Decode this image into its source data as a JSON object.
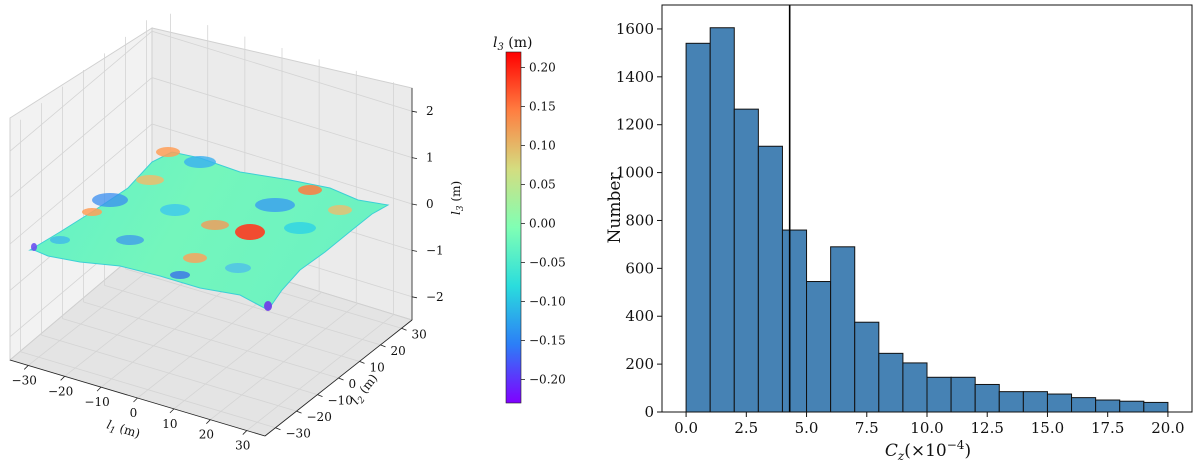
{
  "chart_data": [
    {
      "type": "surface3d",
      "xlabel_main": "l",
      "xlabel_sub": "1",
      "xlabel_unit": " (m)",
      "ylabel_main": "l",
      "ylabel_sub": "2",
      "ylabel_unit": " (m)",
      "zlabel_main": "l",
      "zlabel_sub": "3",
      "zlabel_unit": " (m)",
      "x_ticks": [
        "−30",
        "−20",
        "−10",
        "0",
        "10",
        "20",
        "30"
      ],
      "y_ticks": [
        "−30",
        "−20",
        "−10",
        "0",
        "10",
        "20",
        "30"
      ],
      "z_ticks": [
        "−2",
        "−1",
        "0",
        "1",
        "2"
      ],
      "xlim": [
        -35,
        35
      ],
      "ylim": [
        -35,
        35
      ],
      "zlim": [
        -2.5,
        2.5
      ],
      "grid": true,
      "colormap": "rainbow"
    },
    {
      "type": "colorbar",
      "title_main": "l",
      "title_sub": "3",
      "title_unit": " (m)",
      "range": [
        -0.23,
        0.22
      ],
      "ticks": [
        "0.20",
        "0.15",
        "0.10",
        "0.05",
        "0.00",
        "−0.05",
        "−0.10",
        "−0.15",
        "−0.20"
      ],
      "colors": [
        "#8000ff",
        "#2c7ef7",
        "#2adddd",
        "#80ffb4",
        "#d4dd80",
        "#ff7e41",
        "#ff0000"
      ]
    },
    {
      "type": "bar",
      "bin_edges": [
        0,
        1,
        2,
        3,
        4,
        5,
        6,
        7,
        8,
        9,
        10,
        11,
        12,
        13,
        14,
        15,
        16,
        17,
        18,
        19,
        20
      ],
      "values": [
        1540,
        1605,
        1265,
        1110,
        760,
        545,
        690,
        375,
        245,
        205,
        145,
        145,
        115,
        85,
        85,
        75,
        60,
        50,
        45,
        40
      ],
      "vline_x": 4.3,
      "xlabel_main": "C",
      "xlabel_sub": "z",
      "xlabel_unit": "(×10",
      "xlabel_exp": "−4",
      "xlabel_close": ")",
      "ylabel": "Number",
      "xlim": [
        -1,
        21
      ],
      "ylim": [
        0,
        1700
      ],
      "x_ticks": [
        "0.0",
        "2.5",
        "5.0",
        "7.5",
        "10.0",
        "12.5",
        "15.0",
        "17.5",
        "20.0"
      ],
      "y_ticks": [
        "0",
        "200",
        "400",
        "600",
        "800",
        "1000",
        "1200",
        "1400",
        "1600"
      ],
      "bar_color": "#4682b4",
      "edge_color": "#111111",
      "grid": false
    }
  ]
}
